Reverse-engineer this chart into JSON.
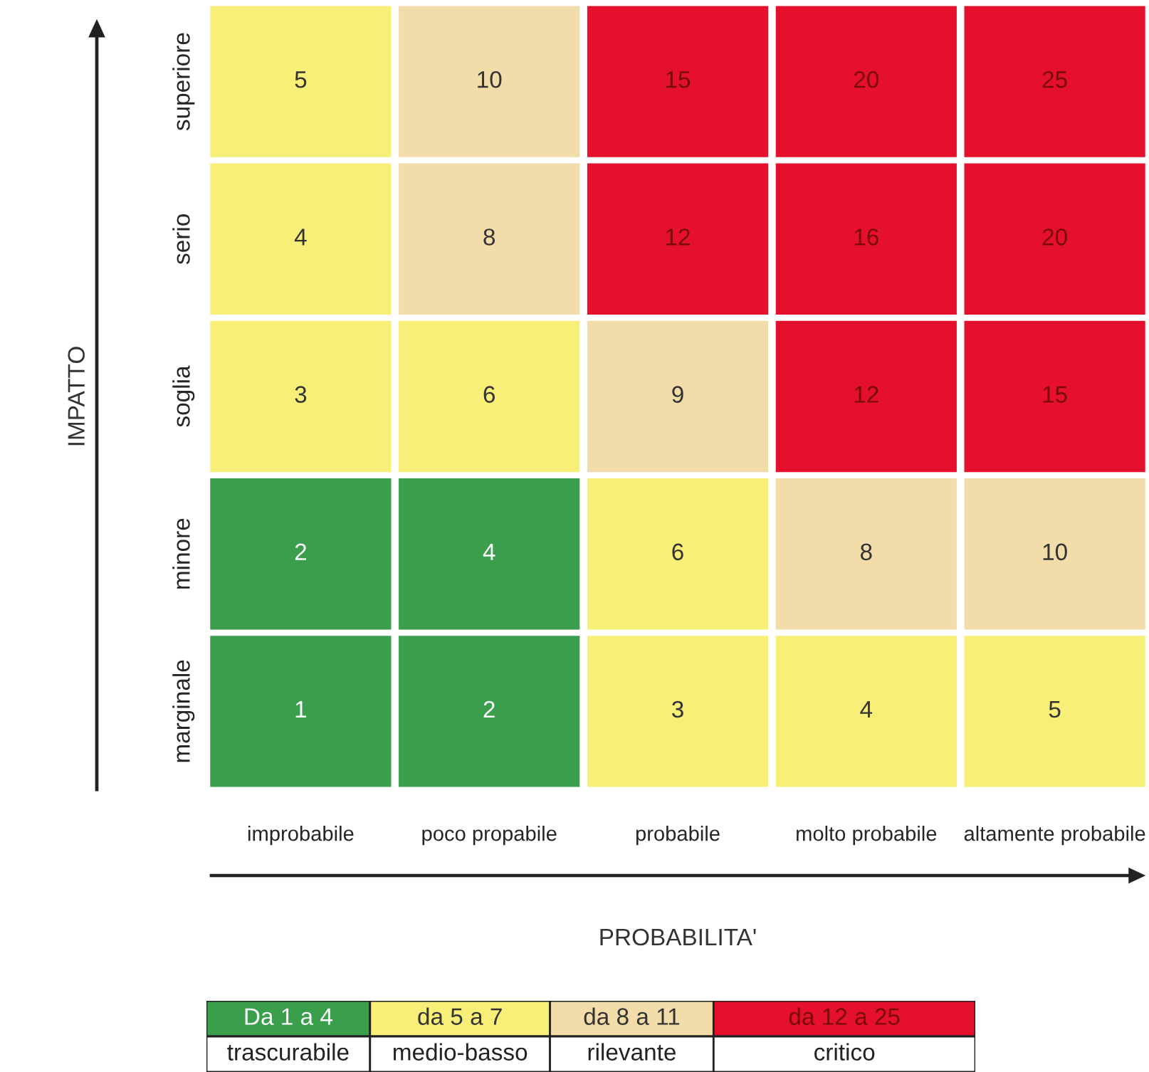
{
  "chart_data": {
    "type": "heatmap",
    "xlabel": "PROBABILITA'",
    "ylabel": "IMPATTO",
    "categories": [
      "improbabile",
      "poco propabile",
      "probabile",
      "molto probabile",
      "altamente probabile"
    ],
    "y_categories": [
      "superiore",
      "serio",
      "soglia",
      "minore",
      "marginale"
    ],
    "cells": [
      [
        5,
        10,
        15,
        20,
        25
      ],
      [
        4,
        8,
        12,
        16,
        20
      ],
      [
        3,
        6,
        9,
        12,
        15
      ],
      [
        2,
        4,
        6,
        8,
        10
      ],
      [
        1,
        2,
        3,
        4,
        5
      ]
    ],
    "colors": [
      [
        "#f7ef78",
        "#f1dcaa",
        "#e5102b",
        "#e5102b",
        "#e5102b"
      ],
      [
        "#f7ef78",
        "#f1dcaa",
        "#e5102b",
        "#e5102b",
        "#e5102b"
      ],
      [
        "#f7ef78",
        "#f7ef78",
        "#f1dcaa",
        "#e5102b",
        "#e5102b"
      ],
      [
        "#3a9e4c",
        "#3a9e4c",
        "#f7ef78",
        "#f1dcaa",
        "#f1dcaa"
      ],
      [
        "#3a9e4c",
        "#3a9e4c",
        "#f7ef78",
        "#f7ef78",
        "#f7ef78"
      ]
    ],
    "data_labels": true,
    "annotations": [
      "Da 1 a 4",
      "da 5 a 7",
      "da 8 a 11",
      "da 12 a 25",
      "trascurabile",
      "medio-basso",
      "rilevante",
      "critico"
    ]
  }
}
